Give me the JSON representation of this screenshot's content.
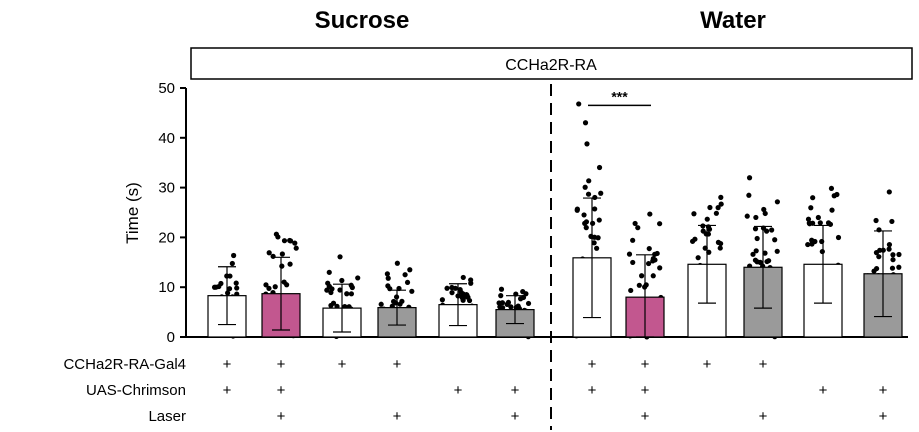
{
  "chart_data": {
    "type": "bar",
    "group_titles": [
      "Sucrose",
      "Water"
    ],
    "banner": "CCHa2R-RA",
    "ylabel": "Time (s)",
    "ylim": [
      0,
      50
    ],
    "yticks": [
      0,
      10,
      20,
      30,
      40,
      50
    ],
    "bars": [
      {
        "group": "Sucrose",
        "mean": 8.3,
        "sd": 5.8,
        "fill": "#ffffff"
      },
      {
        "group": "Sucrose",
        "mean": 8.7,
        "sd": 7.3,
        "fill": "#c2578f"
      },
      {
        "group": "Sucrose",
        "mean": 5.8,
        "sd": 4.8,
        "fill": "#ffffff"
      },
      {
        "group": "Sucrose",
        "mean": 5.9,
        "sd": 3.5,
        "fill": "#9a9a9a"
      },
      {
        "group": "Sucrose",
        "mean": 6.5,
        "sd": 4.2,
        "fill": "#ffffff"
      },
      {
        "group": "Sucrose",
        "mean": 5.5,
        "sd": 2.8,
        "fill": "#9a9a9a"
      },
      {
        "group": "Water",
        "mean": 15.9,
        "sd": 12.0,
        "fill": "#ffffff"
      },
      {
        "group": "Water",
        "mean": 8.0,
        "sd": 8.5,
        "fill": "#c2578f"
      },
      {
        "group": "Water",
        "mean": 14.6,
        "sd": 7.8,
        "fill": "#ffffff"
      },
      {
        "group": "Water",
        "mean": 14.0,
        "sd": 8.2,
        "fill": "#9a9a9a"
      },
      {
        "group": "Water",
        "mean": 14.6,
        "sd": 7.8,
        "fill": "#ffffff"
      },
      {
        "group": "Water",
        "mean": 12.7,
        "sd": 8.6,
        "fill": "#9a9a9a"
      }
    ],
    "significance": {
      "from_bar": 6,
      "to_bar": 7,
      "label": "***",
      "y": 46.5
    },
    "genotype_rows": [
      {
        "label": "CCHa2R-RA-Gal4",
        "marks": [
          "+",
          "+",
          "+",
          "+",
          "",
          "",
          "+",
          "+",
          "+",
          "+",
          "",
          ""
        ]
      },
      {
        "label": "UAS-Chrimson",
        "marks": [
          "+",
          "+",
          "",
          "",
          "+",
          "+",
          "+",
          "+",
          "",
          "",
          "+",
          "+"
        ]
      },
      {
        "label": "Laser",
        "marks": [
          "",
          "+",
          "",
          "+",
          "",
          "+",
          "",
          "+",
          "",
          "+",
          "",
          "+"
        ]
      }
    ]
  }
}
